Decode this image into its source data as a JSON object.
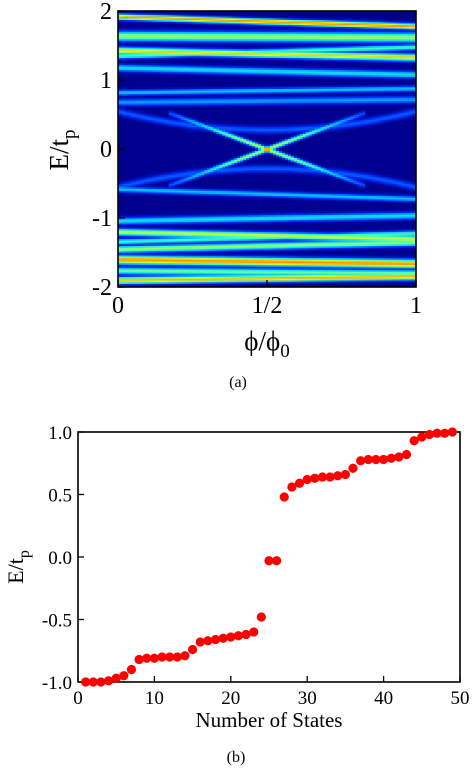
{
  "chart_data": [
    {
      "type": "heatmap",
      "panel_label": "(a)",
      "xlabel": "ϕ/ϕ",
      "xlabel_sub": "0",
      "ylabel": "E/t",
      "ylabel_sub": "p",
      "xlim": [
        0,
        1
      ],
      "ylim": [
        -2,
        2
      ],
      "x_ticks": [
        {
          "value": 0,
          "label": "0"
        },
        {
          "value": 0.5,
          "label": "1/2"
        },
        {
          "value": 1,
          "label": "1"
        }
      ],
      "y_ticks": [
        {
          "value": 2,
          "label": "2"
        },
        {
          "value": 1,
          "label": "1"
        },
        {
          "value": 0,
          "label": "0"
        },
        {
          "value": -1,
          "label": "-1"
        },
        {
          "value": -2,
          "label": "-2"
        }
      ],
      "colormap": [
        "#00008f",
        "#0030ff",
        "#00c0ff",
        "#40ffc0",
        "#d0ff30",
        "#ffa000",
        "#ff0000"
      ],
      "background_color": "#00008f",
      "bands": [
        {
          "e0": 1.92,
          "e1": 1.78,
          "width": 0.04,
          "intensity": 0.85
        },
        {
          "e0": 1.64,
          "e1": 1.62,
          "width": 0.07,
          "intensity": 0.6
        },
        {
          "e0": 1.43,
          "e1": 1.33,
          "width": 0.05,
          "intensity": 0.75
        },
        {
          "e0": 1.35,
          "e1": 1.48,
          "width": 0.04,
          "intensity": 0.5
        },
        {
          "e0": 1.18,
          "e1": 1.08,
          "width": 0.05,
          "intensity": 0.4
        },
        {
          "e0": 0.82,
          "e1": 0.88,
          "width": 0.04,
          "intensity": 0.35
        },
        {
          "e0": 0.68,
          "e1": 0.72,
          "width": 0.05,
          "intensity": 0.3
        },
        {
          "e0": -0.58,
          "e1": -0.72,
          "width": 0.04,
          "intensity": 0.35
        },
        {
          "e0": -1.04,
          "e1": -0.96,
          "width": 0.05,
          "intensity": 0.4
        },
        {
          "e0": -1.2,
          "e1": -1.3,
          "width": 0.05,
          "intensity": 0.65
        },
        {
          "e0": -1.34,
          "e1": -1.22,
          "width": 0.04,
          "intensity": 0.5
        },
        {
          "e0": -1.45,
          "e1": -1.35,
          "width": 0.05,
          "intensity": 0.6
        },
        {
          "e0": -1.6,
          "e1": -1.66,
          "width": 0.06,
          "intensity": 0.85
        },
        {
          "e0": -1.76,
          "e1": -1.8,
          "width": 0.05,
          "intensity": 0.55
        },
        {
          "e0": -1.9,
          "e1": -1.84,
          "width": 0.05,
          "intensity": 0.8
        }
      ],
      "gap_edge": {
        "outer_energy": 0.55,
        "inner_energy": 0.28,
        "intensity": 0.22
      },
      "crossing": {
        "center_phi": 0.5,
        "slope": 1.6,
        "phi_half_range": 0.33,
        "intensity": 0.65,
        "hotspot_intensity": 1.0
      }
    },
    {
      "type": "scatter",
      "panel_label": "(b)",
      "xlabel": "Number of States",
      "ylabel": "E/t",
      "ylabel_sub": "p",
      "xlim": [
        0,
        50
      ],
      "ylim": [
        -1,
        1
      ],
      "x_ticks": [
        {
          "value": 0,
          "label": "0"
        },
        {
          "value": 10,
          "label": "10"
        },
        {
          "value": 20,
          "label": "20"
        },
        {
          "value": 30,
          "label": "30"
        },
        {
          "value": 40,
          "label": "40"
        },
        {
          "value": 50,
          "label": "50"
        }
      ],
      "y_ticks": [
        {
          "value": 1,
          "label": "1.0"
        },
        {
          "value": 0.5,
          "label": "0.5"
        },
        {
          "value": 0,
          "label": "0.0"
        },
        {
          "value": -0.5,
          "label": "-0.5"
        },
        {
          "value": -1,
          "label": "-1.0"
        }
      ],
      "marker_color": "#ff0000",
      "x": [
        1,
        2,
        3,
        4,
        5,
        6,
        7,
        8,
        9,
        10,
        11,
        12,
        13,
        14,
        15,
        16,
        17,
        18,
        19,
        20,
        21,
        22,
        23,
        24,
        25,
        26,
        27,
        28,
        29,
        30,
        31,
        32,
        33,
        34,
        35,
        36,
        37,
        38,
        39,
        40,
        41,
        42,
        43,
        44,
        45,
        46,
        47,
        48,
        49
      ],
      "y": [
        -1.0,
        -1.0,
        -1.0,
        -0.99,
        -0.97,
        -0.95,
        -0.9,
        -0.82,
        -0.81,
        -0.81,
        -0.8,
        -0.8,
        -0.8,
        -0.79,
        -0.74,
        -0.68,
        -0.67,
        -0.66,
        -0.65,
        -0.64,
        -0.63,
        -0.62,
        -0.6,
        -0.48,
        -0.03,
        -0.03,
        0.48,
        0.56,
        0.59,
        0.62,
        0.63,
        0.64,
        0.64,
        0.65,
        0.66,
        0.71,
        0.77,
        0.78,
        0.78,
        0.78,
        0.79,
        0.8,
        0.82,
        0.93,
        0.96,
        0.98,
        0.99,
        0.99,
        1.0
      ]
    }
  ]
}
